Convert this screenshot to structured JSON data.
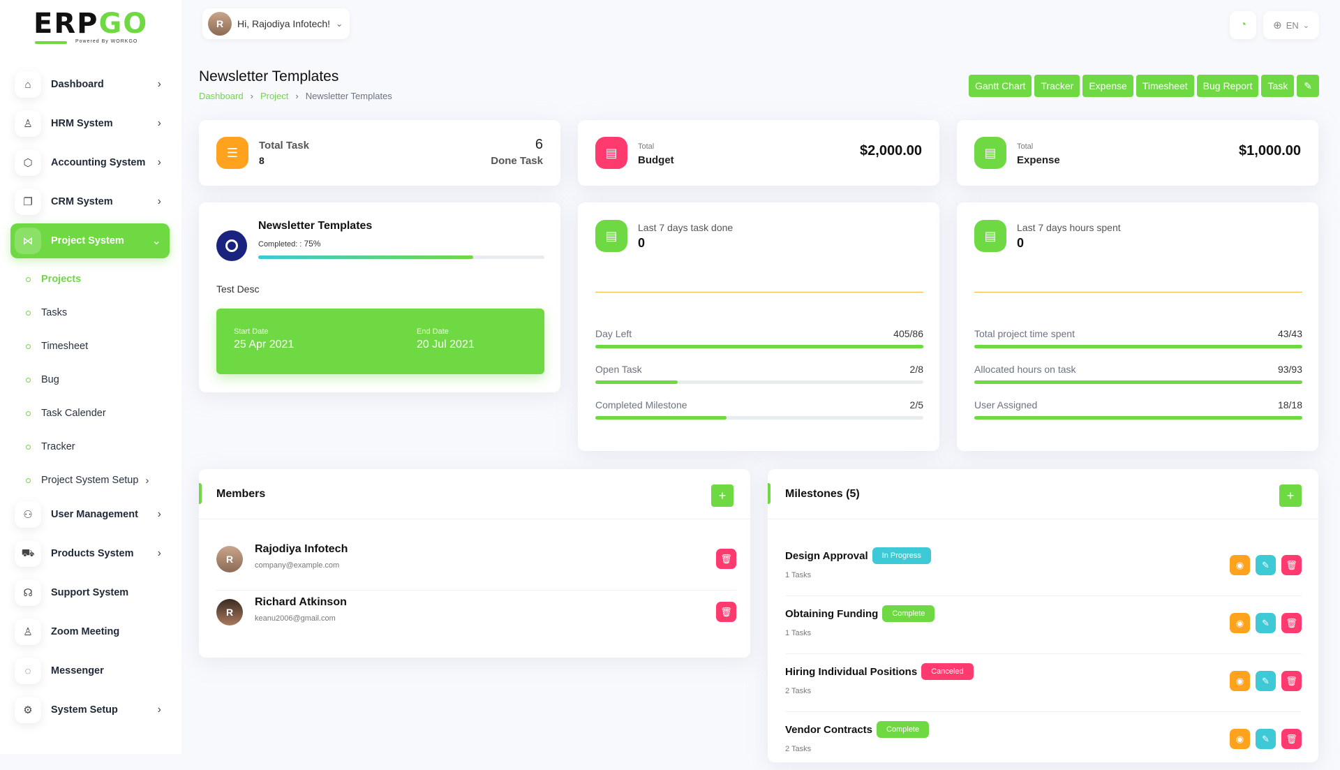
{
  "brand": {
    "logo_main": "ERP",
    "logo_accent": "GO",
    "logo_sub": "Powered By WORKGO"
  },
  "header": {
    "greeting": "Hi, Rajodiya Infotech!",
    "language": "EN"
  },
  "sidebar": {
    "items": [
      {
        "label": "Dashboard"
      },
      {
        "label": "HRM System"
      },
      {
        "label": "Accounting System"
      },
      {
        "label": "CRM System"
      },
      {
        "label": "Project System"
      }
    ],
    "sub_items": [
      {
        "label": "Projects"
      },
      {
        "label": "Tasks"
      },
      {
        "label": "Timesheet"
      },
      {
        "label": "Bug"
      },
      {
        "label": "Task Calender"
      },
      {
        "label": "Tracker"
      },
      {
        "label": "Project System Setup"
      }
    ],
    "items_after": [
      {
        "label": "User Management"
      },
      {
        "label": "Products System"
      },
      {
        "label": "Support System"
      },
      {
        "label": "Zoom Meeting"
      },
      {
        "label": "Messenger"
      },
      {
        "label": "System Setup"
      }
    ]
  },
  "page": {
    "title": "Newsletter Templates",
    "breadcrumb": [
      "Dashboard",
      "Project",
      "Newsletter Templates"
    ],
    "actions": [
      "Gantt Chart",
      "Tracker",
      "Expense",
      "Timesheet",
      "Bug Report",
      "Task"
    ]
  },
  "stats": {
    "total_task_label": "Total Task",
    "total_task_value": "8",
    "done_task_value": "6",
    "done_task_label": "Done Task",
    "budget_small": "Total",
    "budget_label": "Budget",
    "budget_value": "$2,000.00",
    "expense_small": "Total",
    "expense_label": "Expense",
    "expense_value": "$1,000.00"
  },
  "project": {
    "name": "Newsletter Templates",
    "completed_label": "Completed: :",
    "completed_pct": "75%",
    "completed_fraction": 0.75,
    "description": "Test Desc",
    "start_label": "Start Date",
    "start_date": "25 Apr 2021",
    "end_label": "End Date",
    "end_date": "20 Jul 2021"
  },
  "tasks_card": {
    "title": "Last 7 days task done",
    "value": "0",
    "rows": [
      {
        "label": "Day Left",
        "value": "405/86",
        "fraction": 1.0
      },
      {
        "label": "Open Task",
        "value": "2/8",
        "fraction": 0.25
      },
      {
        "label": "Completed Milestone",
        "value": "2/5",
        "fraction": 0.4
      }
    ]
  },
  "hours_card": {
    "title": "Last 7 days hours spent",
    "value": "0",
    "rows": [
      {
        "label": "Total project time spent",
        "value": "43/43",
        "fraction": 1.0
      },
      {
        "label": "Allocated hours on task",
        "value": "93/93",
        "fraction": 1.0
      },
      {
        "label": "User Assigned",
        "value": "18/18",
        "fraction": 1.0
      }
    ]
  },
  "members": {
    "title": "Members",
    "list": [
      {
        "name": "Rajodiya Infotech",
        "email": "company@example.com"
      },
      {
        "name": "Richard Atkinson",
        "email": "keanu2006@gmail.com"
      }
    ]
  },
  "milestones": {
    "title": "Milestones (5)",
    "list": [
      {
        "name": "Design Approval",
        "status": "In Progress",
        "status_color": "#3ec9d6",
        "tasks": "1 Tasks"
      },
      {
        "name": "Obtaining Funding",
        "status": "Complete",
        "status_color": "#6fd943",
        "tasks": "1 Tasks"
      },
      {
        "name": "Hiring Individual Positions",
        "status": "Canceled",
        "status_color": "#ff3a6e",
        "tasks": "2 Tasks"
      },
      {
        "name": "Vendor Contracts",
        "status": "Complete",
        "status_color": "#6fd943",
        "tasks": "2 Tasks"
      }
    ]
  },
  "colors": {
    "primary": "#6fd943",
    "warning": "#ffa21d",
    "danger": "#ff3a6e",
    "info": "#3ec9d6",
    "navy": "#1a237e"
  }
}
